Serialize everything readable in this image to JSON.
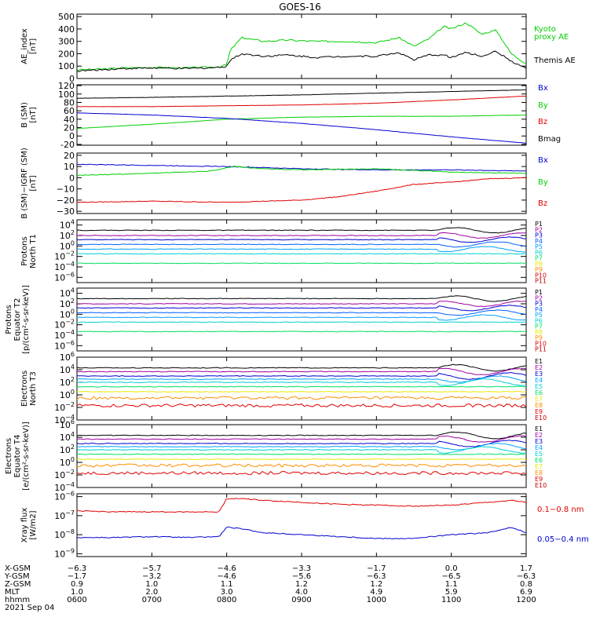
{
  "title": "GOES-16",
  "colors": {
    "black": "#000000",
    "red": "#e00000",
    "green": "#00d000",
    "blue": "#0000d0",
    "orange": "#ff8c00",
    "yellow": "#e8e800",
    "lime": "#00e060",
    "cyan": "#00d0d0",
    "lightblue": "#00a0ff",
    "magenta": "#a000a0",
    "darkred": "#c00000"
  },
  "chart_data": [
    {
      "type": "line",
      "panel": "ae",
      "ylabel": [
        "AE_index",
        "[nT]"
      ],
      "yticks": [
        "500",
        "400",
        "300",
        "200",
        "100",
        "0"
      ],
      "ylim": [
        0,
        520
      ],
      "legend": [
        {
          "name": "Kyoto",
          "color": "#00d000"
        },
        {
          "name": "proxy AE",
          "color": "#00d000"
        },
        {
          "name": "Themis AE",
          "color": "#000000"
        }
      ],
      "series": [
        {
          "name": "Kyoto proxy AE",
          "color": "#00d000",
          "t": [
            6.0,
            6.3,
            6.6,
            7.0,
            7.4,
            7.7,
            7.9,
            8.0,
            8.05,
            8.2,
            8.5,
            8.8,
            9.2,
            9.6,
            10.0,
            10.3,
            10.5,
            10.7,
            10.9,
            11.0,
            11.2,
            11.4,
            11.6,
            11.8,
            12.0
          ],
          "v": [
            70,
            75,
            85,
            90,
            85,
            90,
            95,
            110,
            230,
            330,
            300,
            310,
            300,
            300,
            290,
            330,
            260,
            320,
            420,
            400,
            450,
            360,
            390,
            200,
            120
          ]
        },
        {
          "name": "Themis AE",
          "color": "#000000",
          "t": [
            6.0,
            6.3,
            6.6,
            7.0,
            7.4,
            7.7,
            7.9,
            8.0,
            8.05,
            8.2,
            8.5,
            8.8,
            9.2,
            9.6,
            10.0,
            10.3,
            10.5,
            10.7,
            10.9,
            11.0,
            11.2,
            11.4,
            11.6,
            11.8,
            12.0
          ],
          "v": [
            60,
            70,
            80,
            85,
            80,
            85,
            90,
            100,
            150,
            200,
            180,
            190,
            170,
            180,
            180,
            210,
            150,
            190,
            190,
            170,
            210,
            180,
            220,
            140,
            80
          ]
        }
      ]
    },
    {
      "type": "line",
      "panel": "bsm",
      "ylabel": [
        "B (SM)",
        "[nT]"
      ],
      "yticks": [
        "120",
        "100",
        "80",
        "60",
        "40",
        "20",
        "0",
        "-20"
      ],
      "ylim": [
        -22,
        122
      ],
      "legend": [
        {
          "name": "Bx",
          "color": "#0000d0"
        },
        {
          "name": "By",
          "color": "#00d000"
        },
        {
          "name": "Bz",
          "color": "#e00000"
        },
        {
          "name": "Bmag",
          "color": "#000000"
        }
      ],
      "series": [
        {
          "name": "Bmag",
          "color": "#000000",
          "t": [
            6,
            7,
            8,
            9,
            10,
            11,
            12
          ],
          "v": [
            90,
            92,
            95,
            98,
            102,
            106,
            110
          ]
        },
        {
          "name": "Bz",
          "color": "#e00000",
          "t": [
            6,
            7,
            8,
            9,
            10,
            11,
            12
          ],
          "v": [
            70,
            70,
            72,
            74,
            78,
            86,
            95
          ]
        },
        {
          "name": "By",
          "color": "#00d000",
          "t": [
            6,
            7,
            8,
            9,
            10,
            11,
            12
          ],
          "v": [
            18,
            28,
            40,
            45,
            47,
            47,
            50
          ]
        },
        {
          "name": "Bx",
          "color": "#0000d0",
          "t": [
            6,
            7,
            8,
            9,
            10,
            11,
            12
          ],
          "v": [
            55,
            50,
            42,
            30,
            15,
            -2,
            -17
          ]
        }
      ]
    },
    {
      "type": "line",
      "panel": "bsmigrf",
      "ylabel": [
        "B (SM)−IGRF (SM)",
        "[nT]"
      ],
      "yticks": [
        "20",
        "10",
        "0",
        "−10",
        "−20",
        "−30"
      ],
      "ylim": [
        -32,
        22
      ],
      "legend": [
        {
          "name": "Bx",
          "color": "#0000d0"
        },
        {
          "name": "By",
          "color": "#00d000"
        },
        {
          "name": "Bz",
          "color": "#e00000"
        }
      ],
      "series": [
        {
          "name": "Bx",
          "color": "#0000d0",
          "t": [
            6,
            7,
            8,
            9,
            10,
            11,
            12
          ],
          "v": [
            12,
            11,
            10,
            8,
            7,
            7,
            6
          ]
        },
        {
          "name": "By",
          "color": "#00d000",
          "t": [
            6,
            6.5,
            7,
            7.8,
            8.1,
            8.5,
            9,
            10,
            11,
            12
          ],
          "v": [
            2,
            3,
            4,
            6,
            10,
            8,
            7,
            8,
            5,
            4
          ]
        },
        {
          "name": "Bz",
          "color": "#e00000",
          "t": [
            6,
            7,
            8,
            9,
            9.5,
            10,
            10.5,
            11,
            11.5,
            12
          ],
          "v": [
            -22,
            -21,
            -22,
            -20,
            -17,
            -12,
            -6,
            -4,
            -1,
            0
          ]
        }
      ]
    },
    {
      "type": "line",
      "panel": "protons1",
      "ylabel": [
        "Protons",
        "North T1"
      ],
      "ytick_exps": [
        4,
        2,
        0,
        -2,
        -4,
        -6
      ],
      "ylog": [
        -7,
        5
      ],
      "legend": [
        "P1",
        "P2",
        "P3",
        "P4",
        "P5",
        "P6",
        "P7",
        "P8",
        "P9",
        "P10",
        "P11"
      ],
      "legend_colors": [
        "#000000",
        "#a000a0",
        "#0000d0",
        "#0060ff",
        "#00a0ff",
        "#00d0d0",
        "#00e060",
        "#e8e800",
        "#ff8c00",
        "#e00000",
        "#c00000"
      ],
      "levels": [
        3.0,
        2.0,
        1.2,
        0.3,
        -0.6,
        -1.5,
        -3.3
      ]
    },
    {
      "type": "line",
      "panel": "protons2",
      "ylabel": [
        "Protons",
        "Equator T2",
        "[p/(cm²-s-sr-keV)]"
      ],
      "ytick_exps": [
        4,
        2,
        0,
        -2,
        -4,
        -6
      ],
      "ylog": [
        -7,
        5
      ],
      "legend": [
        "P1",
        "P2",
        "P3",
        "P4",
        "P5",
        "P6",
        "P7",
        "P8",
        "P9",
        "P10",
        "P11"
      ],
      "legend_colors": [
        "#000000",
        "#a000a0",
        "#0000d0",
        "#0060ff",
        "#00a0ff",
        "#00d0d0",
        "#00e060",
        "#e8e800",
        "#ff8c00",
        "#e00000",
        "#c00000"
      ],
      "levels": [
        3.0,
        2.0,
        1.2,
        0.3,
        -0.6,
        -1.5,
        -3.3
      ]
    },
    {
      "type": "line",
      "panel": "electrons3",
      "ylabel": [
        "Electrons",
        "North T3"
      ],
      "ytick_exps": [
        6,
        4,
        2,
        0,
        -2,
        -4
      ],
      "ylog": [
        -4,
        6
      ],
      "legend": [
        "E1",
        "E2",
        "E3",
        "E4",
        "E5",
        "E6",
        "E7",
        "E8",
        "E9",
        "E10"
      ],
      "legend_colors": [
        "#000000",
        "#a000a0",
        "#0000d0",
        "#00a0ff",
        "#00d0d0",
        "#00e060",
        "#e8e800",
        "#ff8c00",
        "#e00000",
        "#c00000"
      ],
      "levels": [
        4.3,
        3.7,
        3.0,
        2.5,
        2.0,
        1.3,
        0.5,
        -0.5,
        -1.7
      ]
    },
    {
      "type": "line",
      "panel": "electrons4",
      "ylabel": [
        "Electrons",
        "Equator T4",
        "[e/(cm²-s-sr-keV)]"
      ],
      "ytick_exps": [
        6,
        4,
        2,
        0,
        -2,
        -4
      ],
      "ylog": [
        -4,
        6
      ],
      "legend": [
        "E1",
        "E2",
        "E3",
        "E4",
        "E5",
        "E6",
        "E7",
        "E8",
        "E9",
        "E10"
      ],
      "legend_colors": [
        "#000000",
        "#a000a0",
        "#0000d0",
        "#00a0ff",
        "#00d0d0",
        "#00e060",
        "#e8e800",
        "#ff8c00",
        "#e00000",
        "#c00000"
      ],
      "levels": [
        4.3,
        3.7,
        3.0,
        2.5,
        2.0,
        1.3,
        0.5,
        -0.5,
        -1.7
      ]
    },
    {
      "type": "line",
      "panel": "xray",
      "ylabel": [
        "Xray flux",
        "[W/m2]"
      ],
      "ytick_exps": [
        -8,
        -7,
        -6,
        -9
      ],
      "ylog": [
        -9.15,
        -5.85
      ],
      "legend": [
        {
          "name": "0.1−0.8 nm",
          "color": "#e00000"
        },
        {
          "name": "0.05−0.4 nm",
          "color": "#0000d0"
        }
      ],
      "series": [
        {
          "name": "0.1−0.8 nm",
          "color": "#e00000",
          "t": [
            6,
            6.5,
            7,
            7.5,
            7.9,
            8.0,
            8.2,
            8.5,
            9,
            9.5,
            10,
            10.5,
            11,
            11.5,
            11.8,
            12
          ],
          "logv": [
            -6.75,
            -6.8,
            -6.8,
            -6.8,
            -6.8,
            -6.1,
            -6.1,
            -6.2,
            -6.3,
            -6.4,
            -6.45,
            -6.5,
            -6.45,
            -6.3,
            -6.2,
            -6.3
          ]
        },
        {
          "name": "0.05−0.4 nm",
          "color": "#0000d0",
          "t": [
            6,
            6.5,
            7,
            7.5,
            7.9,
            8.0,
            8.2,
            8.5,
            9,
            9.5,
            10,
            10.5,
            11,
            11.5,
            11.8,
            12
          ],
          "logv": [
            -8.15,
            -8.15,
            -8.1,
            -8.15,
            -8.1,
            -7.6,
            -7.7,
            -7.9,
            -8.0,
            -8.1,
            -8.2,
            -8.2,
            -8.0,
            -7.9,
            -7.6,
            -7.9
          ]
        }
      ]
    }
  ],
  "x_axis": {
    "row_labels": [
      "X-GSM",
      "Y-GSM",
      "Z-GSM",
      "MLT",
      "hhmm"
    ],
    "columns": [
      {
        "values": [
          "−6.3",
          "−1.7",
          "0.9",
          "1.0",
          "0600"
        ]
      },
      {
        "values": [
          "−5.7",
          "−3.2",
          "1.0",
          "2.0",
          "0700"
        ]
      },
      {
        "values": [
          "−4.6",
          "−4.6",
          "1.1",
          "3.0",
          "0800"
        ]
      },
      {
        "values": [
          "−3.3",
          "−5.6",
          "1.2",
          "4.0",
          "0900"
        ]
      },
      {
        "values": [
          "−1.7",
          "−6.3",
          "1.2",
          "4.9",
          "1000"
        ]
      },
      {
        "values": [
          "0.0",
          "−6.5",
          "1.1",
          "5.9",
          "1100"
        ]
      },
      {
        "values": [
          "1.7",
          "−6.3",
          "0.8",
          "6.9",
          "1200"
        ]
      }
    ],
    "date": "2021 Sep 04"
  }
}
